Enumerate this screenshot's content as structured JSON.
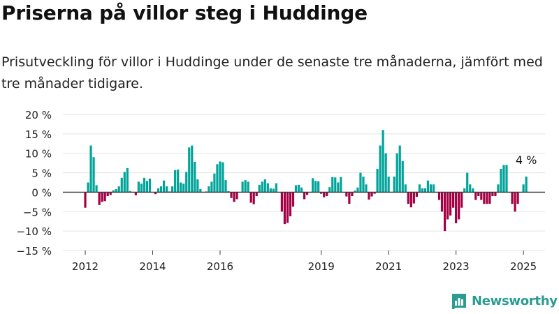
{
  "title": "Priserna på villor steg i Huddinge",
  "subtitle": "Prisutveckling för villor i Huddinge under de senaste tre månaderna, jämfört med tre månader tidigare.",
  "brand": {
    "name": "Newsworthy",
    "logo_icon": "bar-chart-logo-icon",
    "color": "#2b9c91"
  },
  "colors": {
    "positive": "#00a49a",
    "negative": "#a50044",
    "grid": "#e3e3e3",
    "zero_line": "#333333"
  },
  "chart_data": {
    "type": "bar",
    "x_unit": "month",
    "start_month": "2012-01",
    "values": [
      -4,
      2.5,
      12,
      9,
      1.8,
      -3.3,
      -2.5,
      -2.3,
      -1,
      -0.7,
      0.5,
      0.8,
      1.5,
      3.7,
      5.2,
      6.2,
      0.3,
      0,
      -0.8,
      2.7,
      2.2,
      3.7,
      2.9,
      3.5,
      0,
      -0.5,
      1,
      1.5,
      3,
      1.5,
      0.2,
      1.5,
      5.7,
      5.8,
      2.5,
      2.2,
      5.2,
      11.5,
      12,
      7.8,
      3.3,
      0.8,
      0,
      0.2,
      1.5,
      2.7,
      4.8,
      7.2,
      7.9,
      7.7,
      3.1,
      0.3,
      -1.5,
      -2.5,
      -1.8,
      0,
      2.7,
      3.1,
      2.7,
      -2.7,
      -3.1,
      -1,
      1.9,
      2.7,
      3.3,
      2.3,
      1,
      0.9,
      2.3,
      0,
      -5,
      -8.2,
      -7.9,
      -6.2,
      -3.7,
      1.8,
      1.9,
      1.2,
      -1.8,
      -0.7,
      -0.1,
      3.6,
      2.9,
      2.8,
      -0.4,
      -1.3,
      -1,
      1.3,
      3.9,
      3.8,
      2.5,
      3.9,
      0,
      -1.1,
      -3,
      -1,
      0.4,
      1.2,
      5,
      4,
      2,
      -1.9,
      -1.1,
      -0.4,
      6,
      12,
      16,
      10,
      4,
      0,
      4,
      10,
      12,
      8,
      2,
      -3,
      -3.9,
      -2.9,
      -1.2,
      2,
      1,
      1,
      3,
      2,
      2,
      0,
      -2,
      -5,
      -10,
      -7,
      -6,
      -4,
      -8,
      -7,
      -4,
      1,
      5,
      2,
      1,
      -2,
      -1,
      -2,
      -3,
      -3,
      -3,
      -1,
      -1,
      2,
      6,
      7,
      7,
      0,
      -3,
      -5,
      -3,
      0,
      2,
      4
    ],
    "ylim": [
      -15,
      20
    ],
    "y_ticks": [
      -15,
      -10,
      -5,
      0,
      5,
      10,
      15,
      20
    ],
    "y_tick_labels": [
      "−15 %",
      "−10 %",
      "−5 %",
      "0 %",
      "5 %",
      "10 %",
      "15 %",
      "20 %"
    ],
    "x_ticks": [
      {
        "label": "2012",
        "month": "2012-01"
      },
      {
        "label": "2014",
        "month": "2014-01"
      },
      {
        "label": "2016",
        "month": "2016-01"
      },
      {
        "label": "2019",
        "month": "2019-01"
      },
      {
        "label": "2021",
        "month": "2021-01"
      },
      {
        "label": "2023",
        "month": "2023-01"
      },
      {
        "label": "2025",
        "month": "2025-01"
      }
    ],
    "annotation": {
      "text": "4 %"
    },
    "grid": true,
    "legend": "none"
  }
}
